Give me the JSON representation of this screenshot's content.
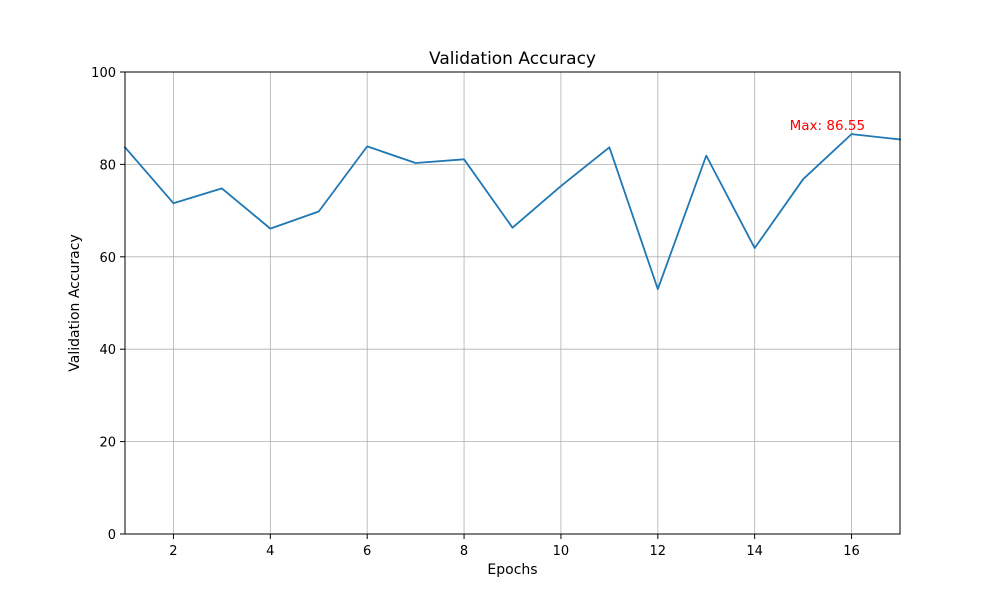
{
  "chart_data": {
    "type": "line",
    "title": "Validation Accuracy",
    "xlabel": "Epochs",
    "ylabel": "Validation Accuracy",
    "xlim": [
      1,
      17
    ],
    "ylim": [
      0,
      100
    ],
    "xticks": [
      2,
      4,
      6,
      8,
      10,
      12,
      14,
      16
    ],
    "yticks": [
      0,
      20,
      40,
      60,
      80,
      100
    ],
    "grid": true,
    "series": [
      {
        "color": "#1f77b4",
        "x": [
          1,
          2,
          3,
          4,
          5,
          6,
          7,
          8,
          9,
          10,
          11,
          12,
          13,
          14,
          15,
          16,
          17
        ],
        "y": [
          83.7,
          71.6,
          74.8,
          66.1,
          69.8,
          83.9,
          80.3,
          81.1,
          66.3,
          75.3,
          83.7,
          53.0,
          81.9,
          61.9,
          76.8,
          86.55,
          85.4
        ]
      }
    ],
    "annotations": [
      {
        "text": "Max: 86.55",
        "color": "#ff0000",
        "x": 15.5,
        "y": 87.5
      }
    ]
  }
}
